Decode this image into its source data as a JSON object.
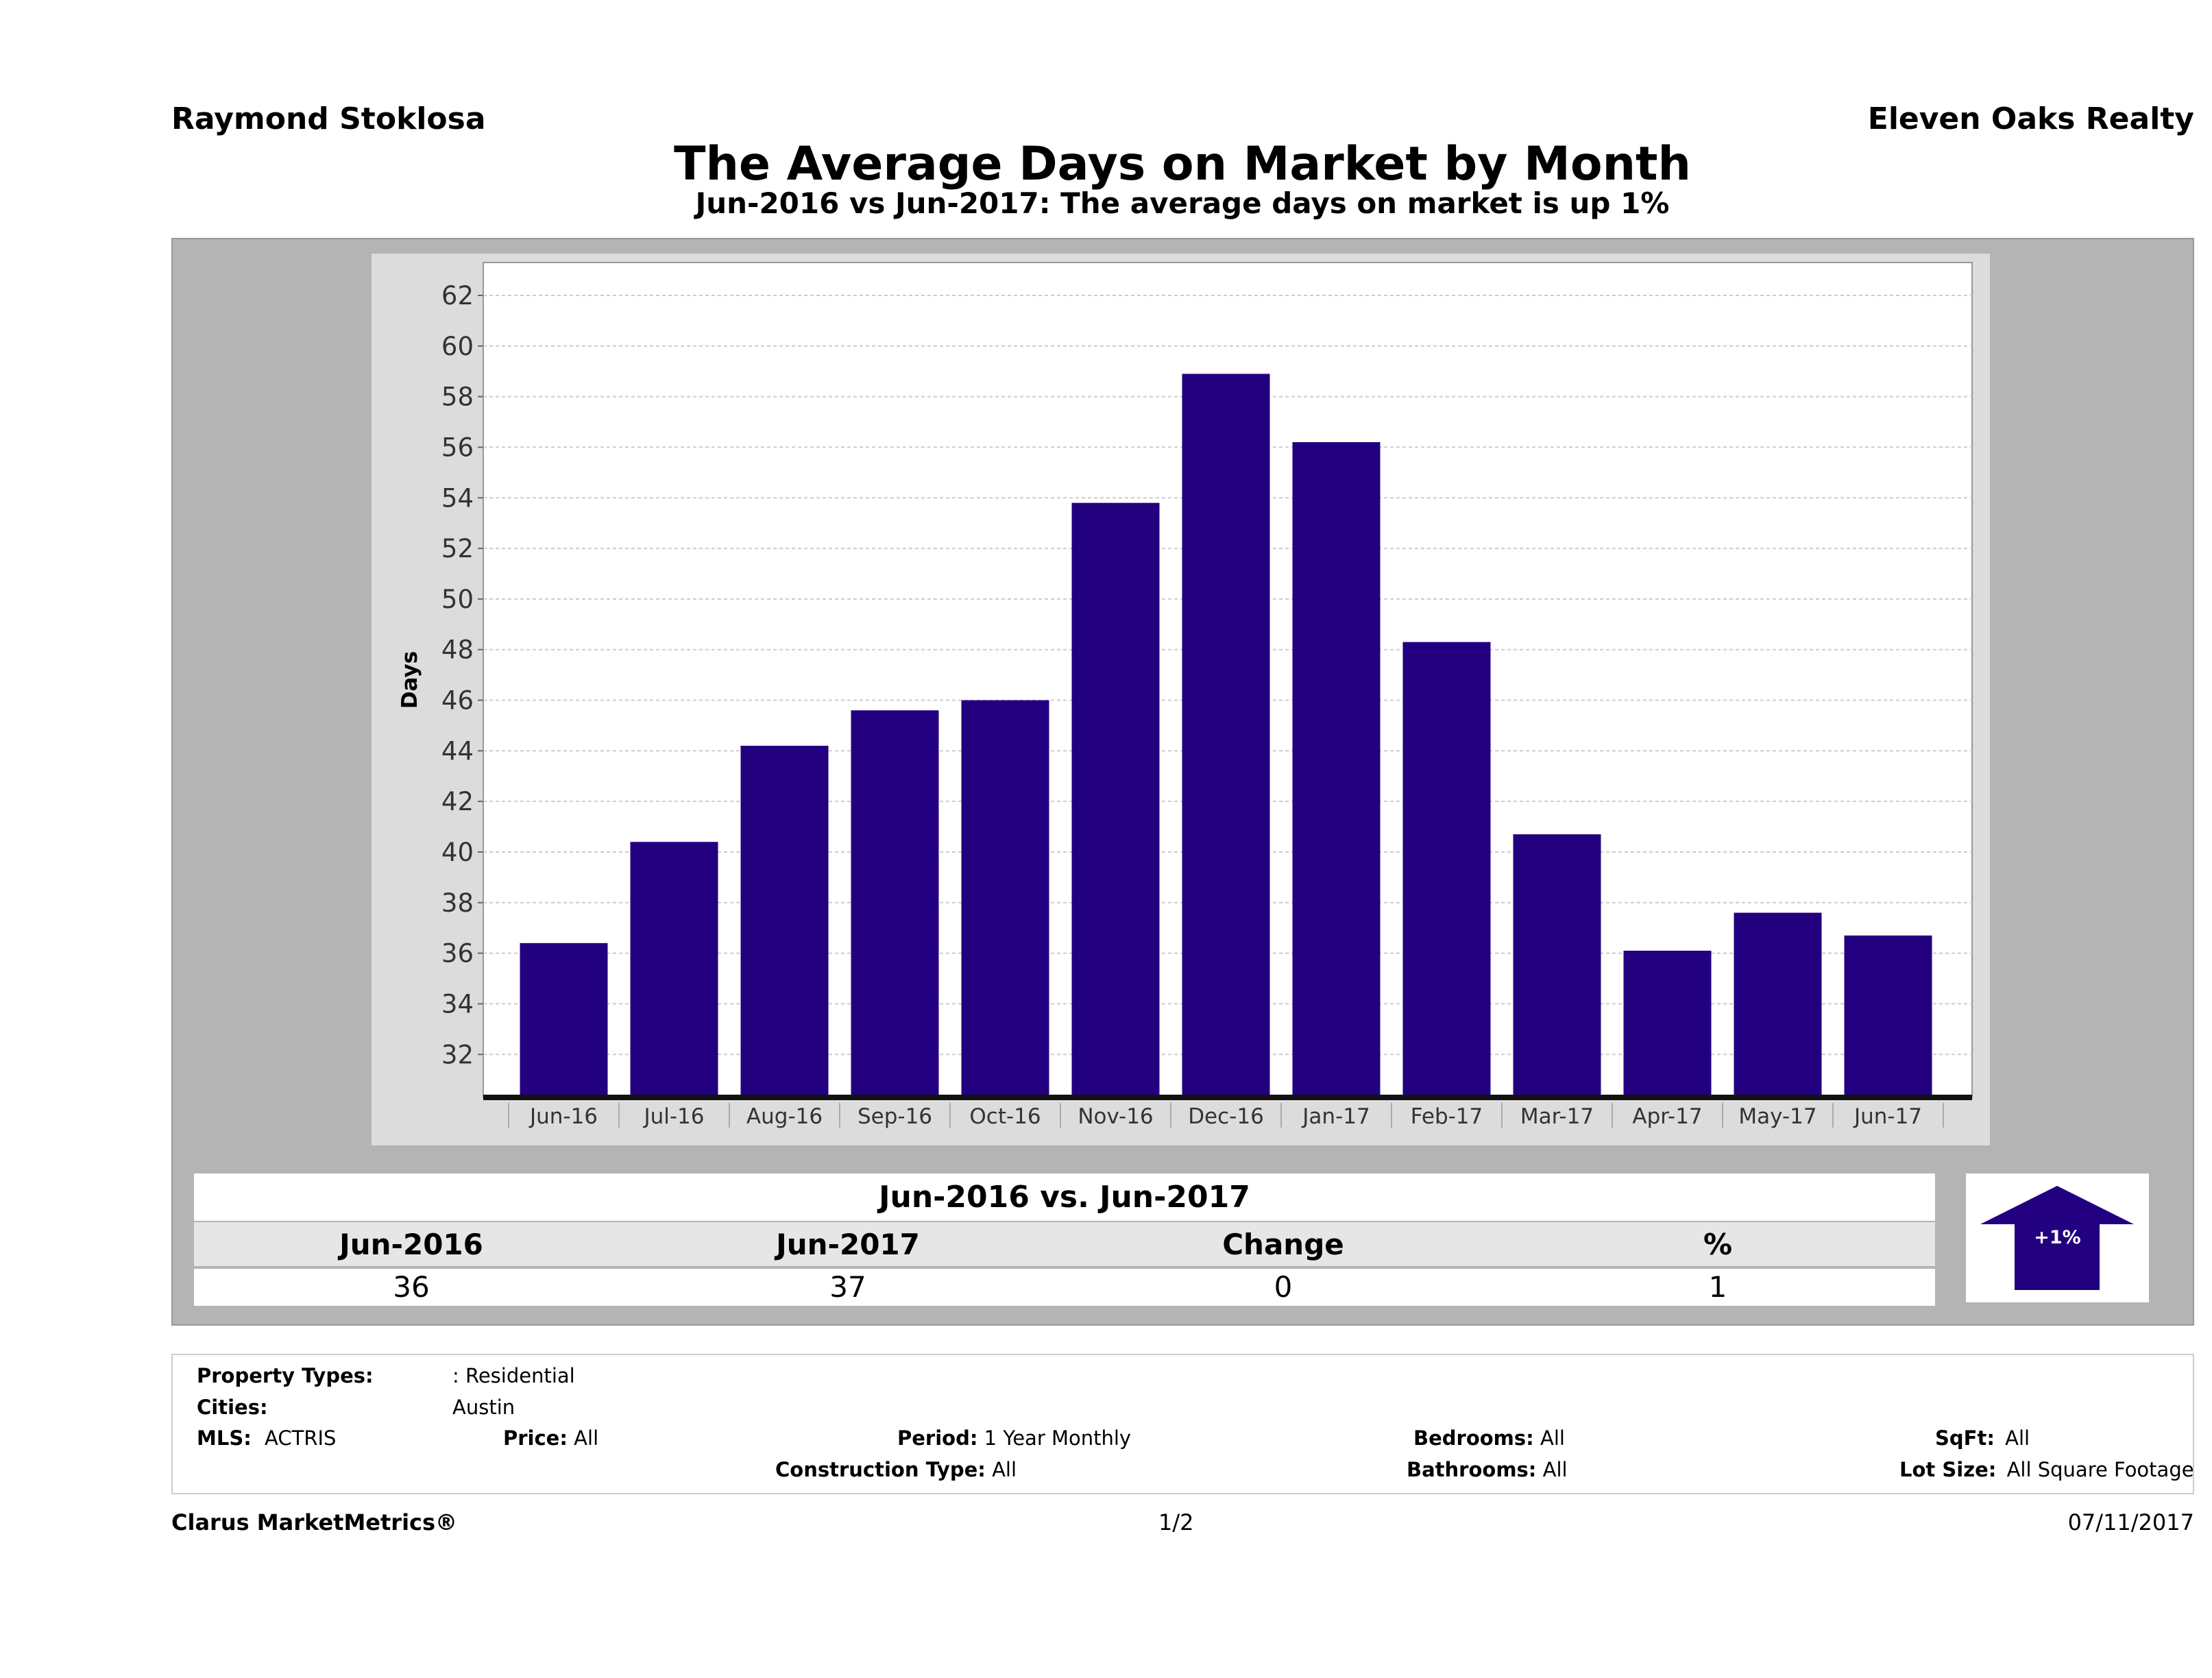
{
  "header": {
    "agent": "Raymond Stoklosa",
    "company": "Eleven Oaks Realty",
    "title": "The Average Days on Market by Month",
    "subtitle": "Jun-2016 vs Jun-2017: The average days on market is up 1%"
  },
  "chart_data": {
    "type": "bar",
    "title": "The Average Days on Market by Month",
    "xlabel": "",
    "ylabel": "Days",
    "categories": [
      "Jun-16",
      "Jul-16",
      "Aug-16",
      "Sep-16",
      "Oct-16",
      "Nov-16",
      "Dec-16",
      "Jan-17",
      "Feb-17",
      "Mar-17",
      "Apr-17",
      "May-17",
      "Jun-17"
    ],
    "values": [
      36.4,
      40.4,
      44.2,
      45.6,
      46.0,
      53.8,
      58.9,
      56.2,
      48.3,
      40.7,
      36.1,
      37.6,
      36.7
    ],
    "yticks": [
      32,
      34,
      36,
      38,
      40,
      42,
      44,
      46,
      48,
      50,
      52,
      54,
      56,
      58,
      60,
      62
    ],
    "ylim": [
      30.3,
      63.3
    ],
    "grid": true,
    "bar_color": "#22007f"
  },
  "summary": {
    "title": "Jun-2016 vs. Jun-2017",
    "headers": [
      "Jun-2016",
      "Jun-2017",
      "Change",
      "%"
    ],
    "values": [
      "36",
      "37",
      "0",
      "1"
    ],
    "badge": "+1%",
    "badge_icon": "up-arrow-icon",
    "badge_color": "#22007f"
  },
  "filters": {
    "property_types_label": "Property Types:",
    "property_types_value": ": Residential",
    "cities_label": "Cities:",
    "cities_value": "Austin",
    "mls_label": "MLS:",
    "mls_value": "ACTRIS",
    "price_label": "Price:",
    "price_value": "All",
    "period_label": "Period:",
    "period_value": "1 Year Monthly",
    "construction_label": "Construction Type:",
    "construction_value": "All",
    "bedrooms_label": "Bedrooms:",
    "bedrooms_value": "All",
    "bathrooms_label": "Bathrooms:",
    "bathrooms_value": "All",
    "sqft_label": "SqFt:",
    "sqft_value": "All",
    "lotsize_label": "Lot Size:",
    "lotsize_value": "All Square Footage"
  },
  "footer": {
    "brand": "Clarus MarketMetrics®",
    "page": "1/2",
    "date": "07/11/2017"
  }
}
